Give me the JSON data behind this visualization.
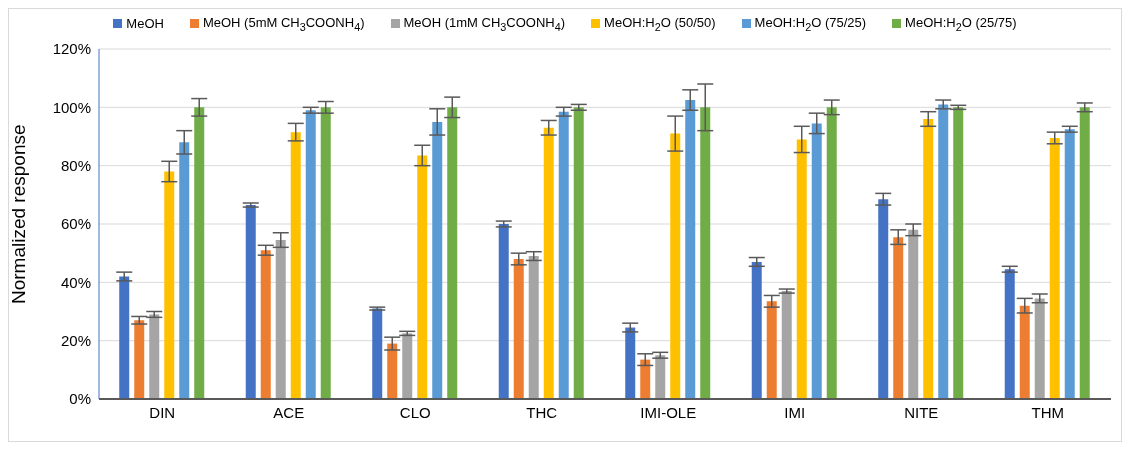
{
  "chart_data": {
    "type": "bar",
    "ylabel": "Normalized response",
    "categories": [
      "DIN",
      "ACE",
      "CLO",
      "THC",
      "IMI-OLE",
      "IMI",
      "NITE",
      "THM"
    ],
    "series": [
      {
        "name": "MeOH",
        "color": "#4472c4",
        "values": [
          42,
          66.5,
          31,
          60,
          24.5,
          47,
          68.5,
          44.5
        ],
        "errors": [
          1.5,
          0.7,
          0.5,
          1,
          1.5,
          1.5,
          2,
          1
        ]
      },
      {
        "name": "MeOH (5mM CH$_{3}$COONH$_{4}$)",
        "color": "#ed7d31",
        "values": [
          27,
          51,
          19,
          48,
          13.5,
          33.5,
          55.5,
          32
        ],
        "errors": [
          1.3,
          1.7,
          2.2,
          2,
          2,
          2,
          2.5,
          2.5
        ]
      },
      {
        "name": "MeOH (1mM CH$_{3}$COONH$_{4}$)",
        "color": "#a5a5a5",
        "values": [
          29,
          54.5,
          22.5,
          49,
          15,
          37,
          58,
          34.5
        ],
        "errors": [
          1,
          2.5,
          0.7,
          1.5,
          1,
          0.7,
          2,
          1.5
        ]
      },
      {
        "name": "MeOH:H$_{2}$O (50/50)",
        "color": "#ffc000",
        "values": [
          78,
          91.5,
          83.5,
          93,
          91,
          89,
          96,
          89.5
        ],
        "errors": [
          3.5,
          3,
          3.5,
          2.5,
          6,
          4.5,
          2.5,
          2
        ]
      },
      {
        "name": "MeOH:H$_{2}$O (75/25)",
        "color": "#5b9bd5",
        "values": [
          88,
          99,
          95,
          98.5,
          102.5,
          94.5,
          101,
          92.5
        ],
        "errors": [
          4,
          1,
          4.5,
          1.5,
          3.5,
          3.5,
          1.5,
          1
        ]
      },
      {
        "name": "MeOH:H$_{2}$O (25/75)",
        "color": "#70ad47",
        "values": [
          100,
          100,
          100,
          100,
          100,
          100,
          100,
          100
        ],
        "errors": [
          3,
          2,
          3.5,
          1,
          8,
          2.5,
          0.7,
          1.5
        ]
      }
    ],
    "ylim": [
      0,
      120
    ],
    "yticks": [
      {
        "value": 0,
        "label": "0%"
      },
      {
        "value": 20,
        "label": "20%"
      },
      {
        "value": 40,
        "label": "40%"
      },
      {
        "value": 60,
        "label": "60%"
      },
      {
        "value": 80,
        "label": "80%"
      },
      {
        "value": 100,
        "label": "100%"
      },
      {
        "value": 120,
        "label": "120%"
      }
    ],
    "grid": "y",
    "legend": "top"
  }
}
